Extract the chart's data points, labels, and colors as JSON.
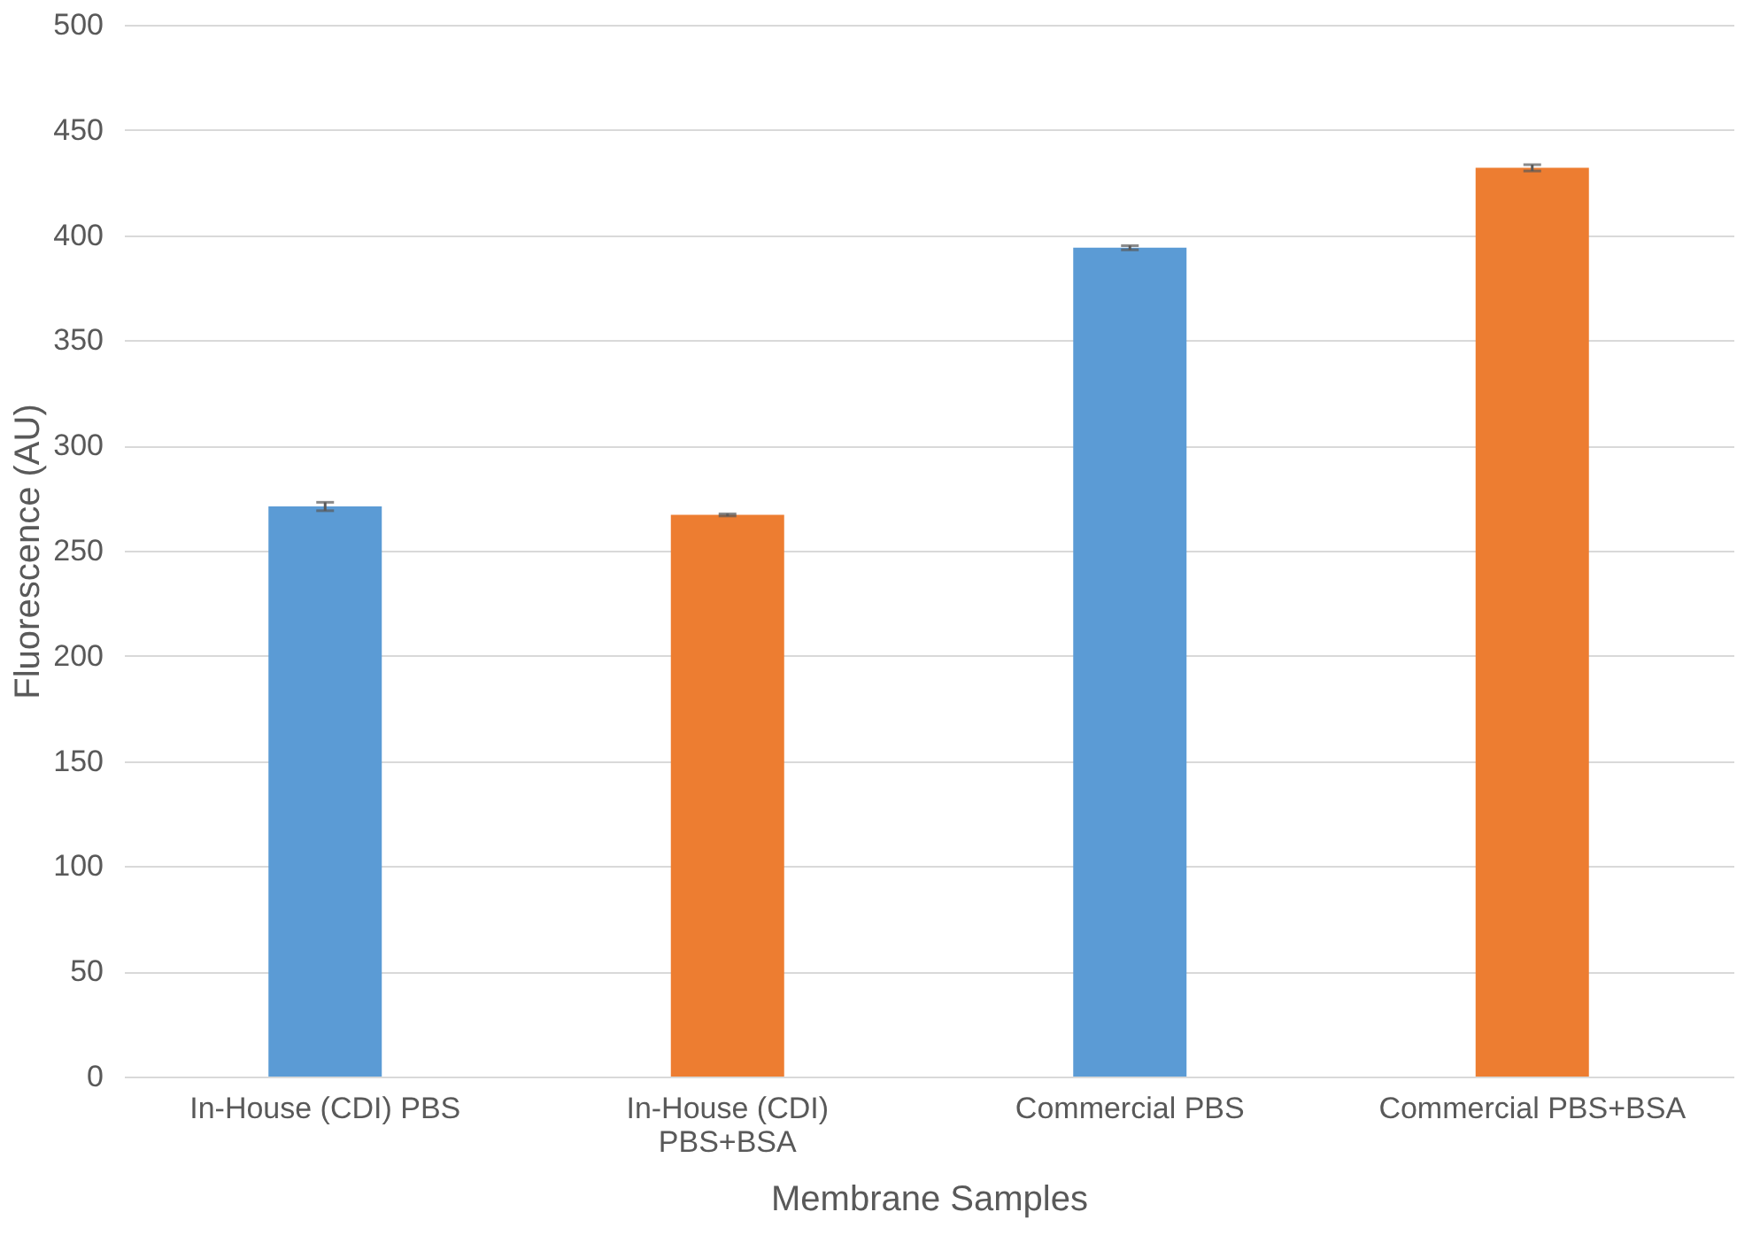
{
  "chart_data": {
    "type": "bar",
    "xlabel": "Membrane Samples",
    "ylabel": "Fluorescence (AU)",
    "categories": [
      "In-House (CDI) PBS",
      "In-House (CDI)\nPBS+BSA",
      "Commercial PBS",
      "Commercial PBS+BSA"
    ],
    "values": [
      271,
      267,
      394,
      432
    ],
    "errors": [
      2,
      0.5,
      1,
      1.5
    ],
    "colors": [
      "#5b9bd5",
      "#ed7d31",
      "#5b9bd5",
      "#ed7d31"
    ],
    "ylim": [
      0,
      500
    ],
    "yticks": [
      0,
      50,
      100,
      150,
      200,
      250,
      300,
      350,
      400,
      450,
      500
    ],
    "grid": "y"
  }
}
